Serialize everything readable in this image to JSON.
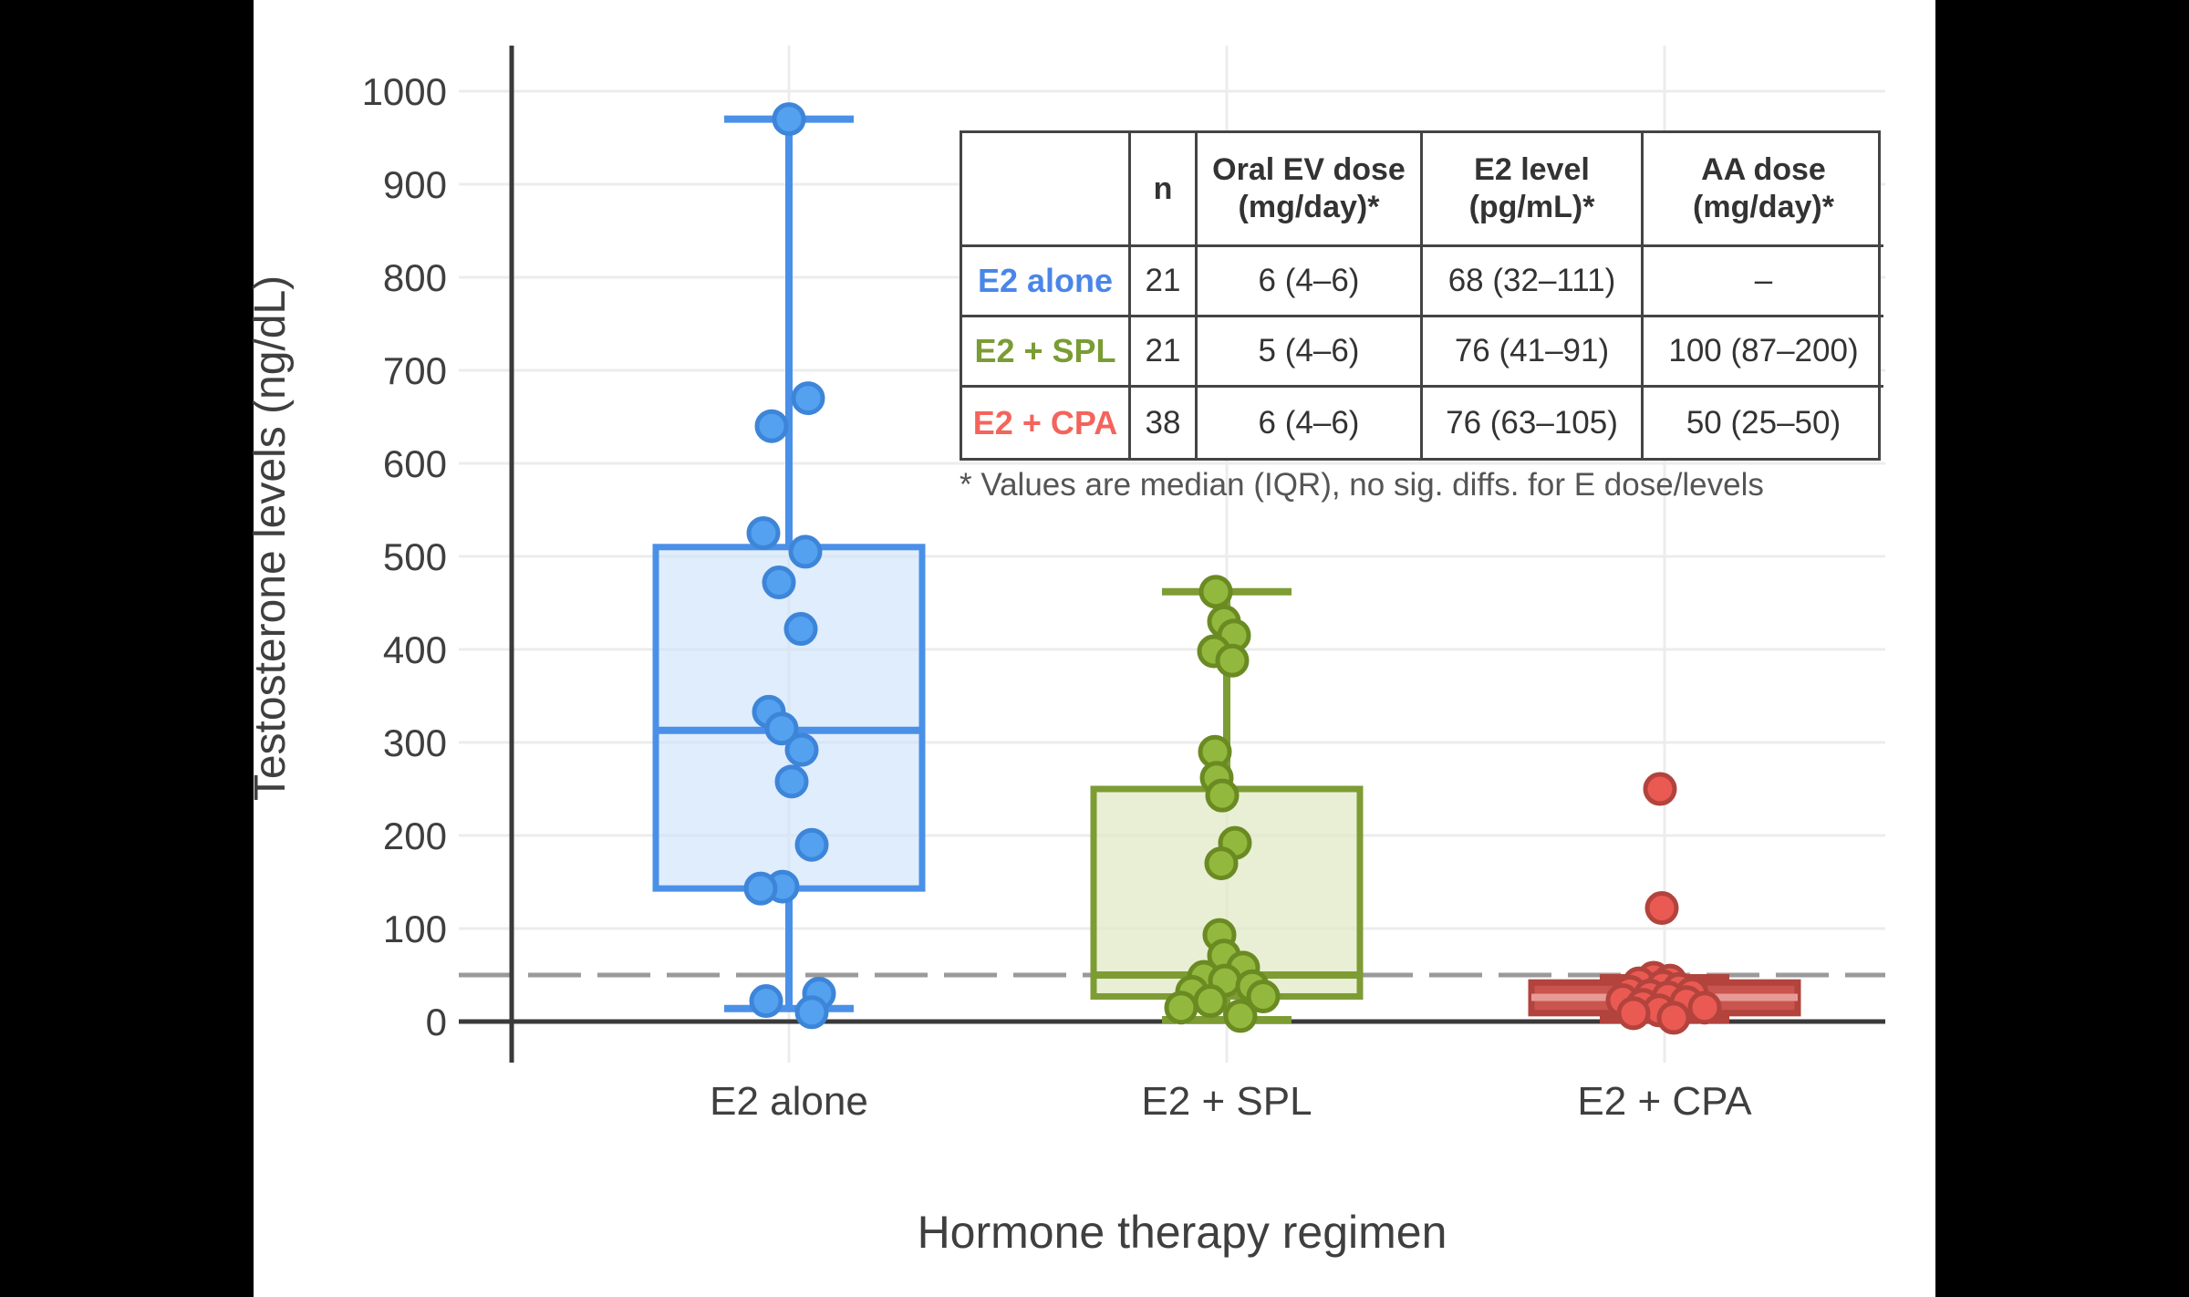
{
  "page": {
    "background": "#000000",
    "card_background": "#ffffff"
  },
  "chart_data": {
    "type": "boxplot",
    "title": "",
    "xlabel": "Hormone therapy regimen",
    "ylabel": "Testosterone levels (ng/dL)",
    "ylim": [
      0,
      1050
    ],
    "yticks": [
      0,
      100,
      200,
      300,
      400,
      500,
      600,
      700,
      800,
      900,
      1000
    ],
    "grid": "on",
    "legend_position": "none",
    "reference_line": {
      "value": 50,
      "style": "dashed",
      "color": "#9a9a9a"
    },
    "categories": [
      "E2 alone",
      "E2 + SPL",
      "E2 + CPA"
    ],
    "groups": [
      {
        "label": "E2 alone",
        "n": 21,
        "label_color": "#4a86e8",
        "box_stroke": "#4a90e8",
        "box_fill": "#cfe4fa",
        "box_fill_opacity": 0.65,
        "median_color": "#4a90e8",
        "point_fill": "#54a1f0",
        "point_stroke": "#3d85d8",
        "box": {
          "q1": 143,
          "median": 313,
          "q3": 510,
          "whisker_low": 14,
          "whisker_high": 970
        },
        "points": [
          {
            "v": 970,
            "dx": 0
          },
          {
            "v": 670,
            "dx": 21
          },
          {
            "v": 640,
            "dx": -19
          },
          {
            "v": 525,
            "dx": -28
          },
          {
            "v": 505,
            "dx": 18
          },
          {
            "v": 472,
            "dx": -11
          },
          {
            "v": 422,
            "dx": 13
          },
          {
            "v": 333,
            "dx": -22
          },
          {
            "v": 315,
            "dx": -8
          },
          {
            "v": 292,
            "dx": 14
          },
          {
            "v": 258,
            "dx": 3
          },
          {
            "v": 190,
            "dx": 25
          },
          {
            "v": 145,
            "dx": -7
          },
          {
            "v": 143,
            "dx": -31
          },
          {
            "v": 30,
            "dx": 33
          },
          {
            "v": 22,
            "dx": -25
          },
          {
            "v": 10,
            "dx": 25
          }
        ]
      },
      {
        "label": "E2 + SPL",
        "n": 21,
        "label_color": "#7a9c34",
        "box_stroke": "#7d9c34",
        "box_fill": "#e2e9c6",
        "box_fill_opacity": 0.75,
        "median_color": "#7d9c34",
        "point_fill": "#93b83e",
        "point_stroke": "#6a8a22",
        "box": {
          "q1": 27,
          "median": 50,
          "q3": 250,
          "whisker_low": 2,
          "whisker_high": 462
        },
        "points": [
          {
            "v": 462,
            "dx": -12
          },
          {
            "v": 430,
            "dx": -3
          },
          {
            "v": 415,
            "dx": 8
          },
          {
            "v": 398,
            "dx": -14
          },
          {
            "v": 388,
            "dx": 6
          },
          {
            "v": 290,
            "dx": -13
          },
          {
            "v": 262,
            "dx": -11
          },
          {
            "v": 243,
            "dx": -5
          },
          {
            "v": 192,
            "dx": 9
          },
          {
            "v": 170,
            "dx": -6
          },
          {
            "v": 93,
            "dx": -8
          },
          {
            "v": 71,
            "dx": -3
          },
          {
            "v": 58,
            "dx": 18
          },
          {
            "v": 48,
            "dx": -25
          },
          {
            "v": 44,
            "dx": -2
          },
          {
            "v": 38,
            "dx": 28
          },
          {
            "v": 32,
            "dx": -38
          },
          {
            "v": 27,
            "dx": 40
          },
          {
            "v": 22,
            "dx": -18
          },
          {
            "v": 15,
            "dx": -50
          },
          {
            "v": 6,
            "dx": 15
          }
        ]
      },
      {
        "label": "E2 + CPA",
        "n": 38,
        "label_color": "#f4645c",
        "box_stroke": "#b2433d",
        "box_fill": "#ca544e",
        "box_fill_opacity": 1,
        "median_color": "#e89b96",
        "point_fill": "#ea5a52",
        "point_stroke": "#b2433d",
        "box": {
          "q1": 9,
          "median": 26,
          "q3": 42,
          "whisker_low": 2,
          "whisker_high": 47
        },
        "points": [
          {
            "v": 250,
            "dx": -5
          },
          {
            "v": 122,
            "dx": -3
          },
          {
            "v": 47,
            "dx": -12
          },
          {
            "v": 44,
            "dx": 6
          },
          {
            "v": 41,
            "dx": -28
          },
          {
            "v": 38,
            "dx": -2
          },
          {
            "v": 35,
            "dx": 16
          },
          {
            "v": 32,
            "dx": -38
          },
          {
            "v": 30,
            "dx": 30
          },
          {
            "v": 28,
            "dx": -16
          },
          {
            "v": 26,
            "dx": 4
          },
          {
            "v": 23,
            "dx": -46
          },
          {
            "v": 21,
            "dx": 24
          },
          {
            "v": 18,
            "dx": -24
          },
          {
            "v": 15,
            "dx": 44
          },
          {
            "v": 12,
            "dx": -6
          },
          {
            "v": 9,
            "dx": -34
          },
          {
            "v": 4,
            "dx": 10
          }
        ]
      }
    ]
  },
  "table": {
    "headers": [
      "",
      "n",
      "Oral EV dose (mg/day)*",
      "E2 level (pg/mL)*",
      "AA dose (mg/day)*"
    ],
    "rows": [
      {
        "label": "E2 alone",
        "n": "21",
        "ev_dose": "6 (4–6)",
        "e2_level": "68 (32–111)",
        "aa_dose": "–"
      },
      {
        "label": "E2 + SPL",
        "n": "21",
        "ev_dose": "5 (4–6)",
        "e2_level": "76 (41–91)",
        "aa_dose": "100 (87–200)"
      },
      {
        "label": "E2 + CPA",
        "n": "38",
        "ev_dose": "6 (4–6)",
        "e2_level": "76 (63–105)",
        "aa_dose": "50 (25–50)"
      }
    ],
    "footnote": "* Values are median (IQR), no sig. diffs. for E dose/levels"
  }
}
